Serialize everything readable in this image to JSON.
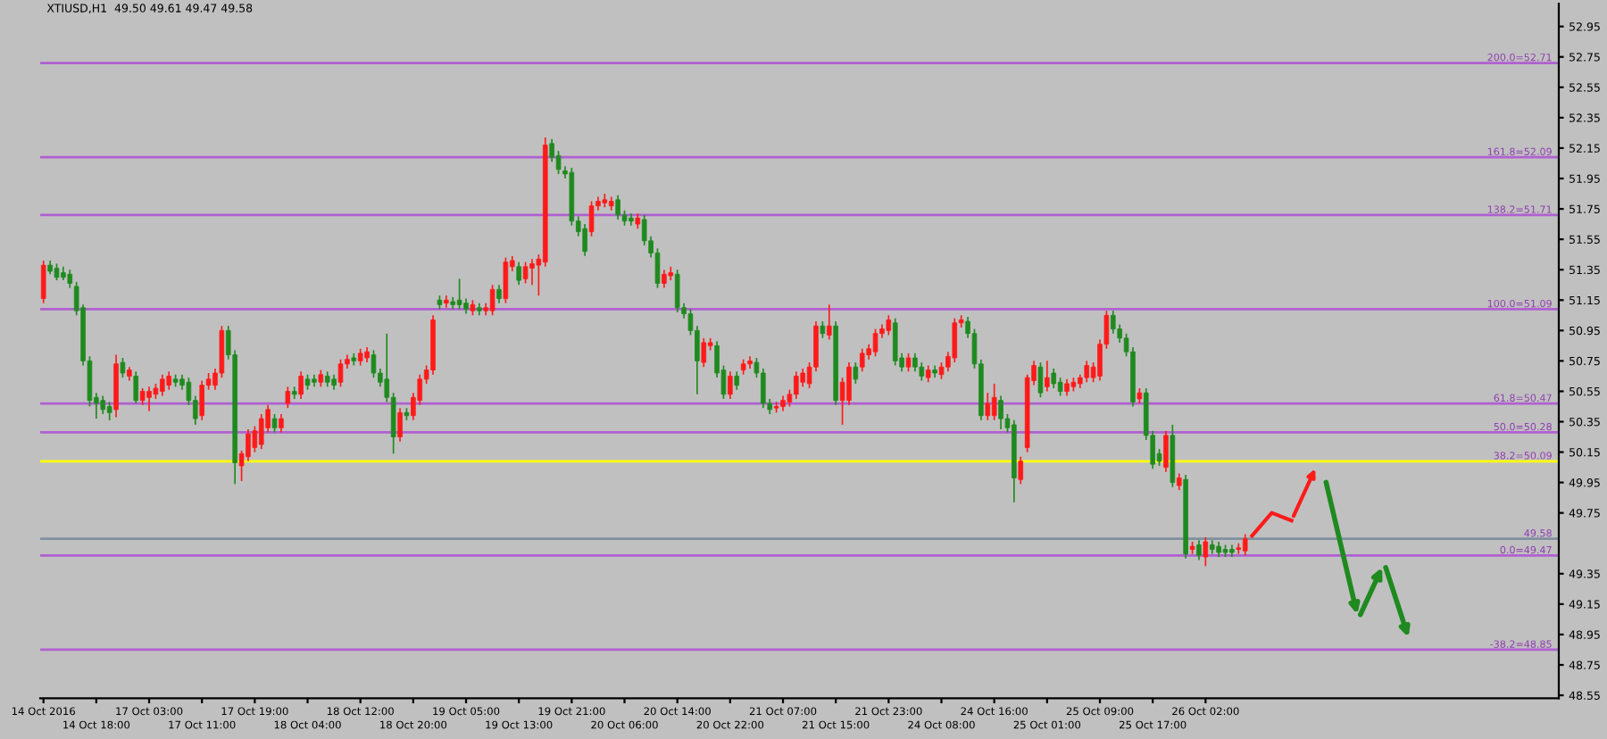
{
  "chart_data": {
    "type": "candlestick",
    "title": "XTIUSD,H1  49.50 49.61 49.47 49.58",
    "categories": [
      "14 Oct 2016",
      null,
      null,
      null,
      null,
      null,
      null,
      null,
      "14 Oct 18:00",
      null,
      null,
      null,
      null,
      null,
      null,
      null,
      "17 Oct 03:00",
      null,
      null,
      null,
      null,
      null,
      null,
      null,
      "17 Oct 11:00",
      null,
      null,
      null,
      null,
      null,
      null,
      null,
      "17 Oct 19:00",
      null,
      null,
      null,
      null,
      null,
      null,
      null,
      "18 Oct 04:00",
      null,
      null,
      null,
      null,
      null,
      null,
      null,
      "18 Oct 12:00",
      null,
      null,
      null,
      null,
      null,
      null,
      null,
      "18 Oct 20:00",
      null,
      null,
      null,
      null,
      null,
      null,
      null,
      "19 Oct 05:00",
      null,
      null,
      null,
      null,
      null,
      null,
      null,
      "19 Oct 13:00",
      null,
      null,
      null,
      null,
      null,
      null,
      null,
      "19 Oct 21:00",
      null,
      null,
      null,
      null,
      null,
      null,
      null,
      "20 Oct 06:00",
      null,
      null,
      null,
      null,
      null,
      null,
      null,
      "20 Oct 14:00",
      null,
      null,
      null,
      null,
      null,
      null,
      null,
      "20 Oct 22:00",
      null,
      null,
      null,
      null,
      null,
      null,
      null,
      "21 Oct 07:00",
      null,
      null,
      null,
      null,
      null,
      null,
      null,
      "21 Oct 15:00",
      null,
      null,
      null,
      null,
      null,
      null,
      null,
      "21 Oct 23:00",
      null,
      null,
      null,
      null,
      null,
      null,
      null,
      "24 Oct 08:00",
      null,
      null,
      null,
      null,
      null,
      null,
      null,
      "24 Oct 16:00",
      null,
      null,
      null,
      null,
      null,
      null,
      null,
      "25 Oct 01:00",
      null,
      null,
      null,
      null,
      null,
      null,
      null,
      "25 Oct 09:00",
      null,
      null,
      null,
      null,
      null,
      null,
      null,
      "25 Oct 17:00",
      null,
      null,
      null,
      null,
      null,
      null,
      null,
      "26 Oct 02:00",
      null,
      null,
      null,
      null,
      null,
      null,
      null,
      null,
      null,
      null,
      null,
      null,
      null,
      null,
      null,
      null,
      null,
      null,
      null,
      null,
      null,
      null,
      null,
      null,
      null,
      null,
      null,
      null,
      null,
      null,
      null,
      null,
      null,
      null,
      null,
      null,
      null,
      null,
      null,
      null,
      null,
      null,
      null,
      null,
      null,
      null,
      null,
      null,
      null,
      null,
      null,
      null,
      null
    ],
    "ohlc": [
      [
        51.16,
        51.41,
        51.13,
        51.38
      ],
      [
        51.38,
        51.41,
        51.32,
        51.34
      ],
      [
        51.36,
        51.39,
        51.28,
        51.3
      ],
      [
        51.33,
        51.37,
        51.28,
        51.3
      ],
      [
        51.32,
        51.35,
        51.23,
        51.26
      ],
      [
        51.24,
        51.27,
        51.05,
        51.08
      ],
      [
        51.1,
        51.12,
        50.72,
        50.75
      ],
      [
        50.75,
        50.78,
        50.45,
        50.49
      ],
      [
        50.51,
        50.54,
        50.37,
        50.47
      ],
      [
        50.49,
        50.52,
        50.4,
        50.43
      ],
      [
        50.45,
        50.48,
        50.36,
        50.41
      ],
      [
        50.43,
        50.79,
        50.38,
        50.73
      ],
      [
        50.74,
        50.77,
        50.64,
        50.67
      ],
      [
        50.65,
        50.71,
        50.62,
        50.69
      ],
      [
        50.65,
        50.68,
        50.47,
        50.49
      ],
      [
        50.49,
        50.57,
        50.46,
        50.55
      ],
      [
        50.51,
        50.58,
        50.42,
        50.55
      ],
      [
        50.53,
        50.6,
        50.5,
        50.57
      ],
      [
        50.55,
        50.66,
        50.52,
        50.63
      ],
      [
        50.59,
        50.68,
        50.56,
        50.65
      ],
      [
        50.63,
        50.66,
        50.58,
        50.61
      ],
      [
        50.63,
        50.66,
        50.56,
        50.59
      ],
      [
        50.61,
        50.64,
        50.46,
        50.49
      ],
      [
        50.49,
        50.52,
        50.33,
        50.37
      ],
      [
        50.39,
        50.62,
        50.36,
        50.59
      ],
      [
        50.59,
        50.67,
        50.56,
        50.63
      ],
      [
        50.59,
        50.7,
        50.56,
        50.67
      ],
      [
        50.67,
        50.98,
        50.64,
        50.95
      ],
      [
        50.95,
        50.98,
        50.76,
        50.79
      ],
      [
        50.79,
        50.82,
        49.94,
        50.08
      ],
      [
        50.06,
        50.16,
        49.96,
        50.14
      ],
      [
        50.12,
        50.3,
        50.09,
        50.27
      ],
      [
        50.18,
        50.32,
        50.15,
        50.29
      ],
      [
        50.2,
        50.4,
        50.17,
        50.37
      ],
      [
        50.31,
        50.46,
        50.28,
        50.43
      ],
      [
        50.37,
        50.4,
        50.28,
        50.31
      ],
      [
        50.31,
        50.4,
        50.28,
        50.37
      ],
      [
        50.47,
        50.58,
        50.44,
        50.55
      ],
      [
        50.55,
        50.58,
        50.5,
        50.53
      ],
      [
        50.53,
        50.68,
        50.5,
        50.65
      ],
      [
        50.63,
        50.66,
        50.56,
        50.59
      ],
      [
        50.63,
        50.66,
        50.58,
        50.61
      ],
      [
        50.61,
        50.69,
        50.58,
        50.66
      ],
      [
        50.65,
        50.68,
        50.58,
        50.61
      ],
      [
        50.63,
        50.66,
        50.56,
        50.59
      ],
      [
        50.61,
        50.76,
        50.58,
        50.73
      ],
      [
        50.73,
        50.79,
        50.7,
        50.76
      ],
      [
        50.77,
        50.8,
        50.72,
        50.75
      ],
      [
        50.75,
        50.83,
        50.72,
        50.8
      ],
      [
        50.77,
        50.84,
        50.74,
        50.81
      ],
      [
        50.79,
        50.82,
        50.64,
        50.67
      ],
      [
        50.67,
        50.7,
        50.58,
        50.61
      ],
      [
        50.63,
        50.93,
        50.48,
        50.51
      ],
      [
        50.51,
        50.54,
        50.14,
        50.25
      ],
      [
        50.25,
        50.44,
        50.22,
        50.41
      ],
      [
        50.41,
        50.44,
        50.36,
        50.39
      ],
      [
        50.39,
        50.54,
        50.36,
        50.51
      ],
      [
        50.49,
        50.66,
        50.46,
        50.63
      ],
      [
        50.63,
        50.72,
        50.6,
        50.69
      ],
      [
        50.69,
        51.05,
        50.66,
        51.02
      ],
      [
        51.15,
        51.18,
        51.09,
        51.12
      ],
      [
        51.13,
        51.18,
        51.1,
        51.15
      ],
      [
        51.14,
        51.17,
        51.09,
        51.12
      ],
      [
        51.15,
        51.29,
        51.09,
        51.12
      ],
      [
        51.13,
        51.16,
        51.06,
        51.09
      ],
      [
        51.08,
        51.15,
        51.05,
        51.12
      ],
      [
        51.1,
        51.13,
        51.05,
        51.08
      ],
      [
        51.08,
        51.13,
        51.05,
        51.1
      ],
      [
        51.08,
        51.25,
        51.05,
        51.22
      ],
      [
        51.22,
        51.25,
        51.13,
        51.16
      ],
      [
        51.16,
        51.43,
        51.13,
        51.4
      ],
      [
        51.37,
        51.44,
        51.34,
        51.41
      ],
      [
        51.37,
        51.4,
        51.25,
        51.28
      ],
      [
        51.29,
        51.4,
        51.26,
        51.37
      ],
      [
        51.36,
        51.42,
        51.25,
        51.39
      ],
      [
        51.38,
        51.45,
        51.18,
        51.42
      ],
      [
        51.4,
        52.22,
        51.37,
        52.17
      ],
      [
        52.18,
        52.21,
        52.06,
        52.09
      ],
      [
        52.1,
        52.13,
        51.98,
        52.01
      ],
      [
        52.0,
        52.03,
        51.95,
        51.98
      ],
      [
        51.99,
        52.02,
        51.64,
        51.67
      ],
      [
        51.67,
        51.7,
        51.57,
        51.6
      ],
      [
        51.62,
        51.65,
        51.44,
        51.47
      ],
      [
        51.6,
        51.8,
        51.57,
        51.77
      ],
      [
        51.77,
        51.83,
        51.74,
        51.8
      ],
      [
        51.79,
        51.85,
        51.76,
        51.81
      ],
      [
        51.77,
        51.83,
        51.74,
        51.8
      ],
      [
        51.81,
        51.84,
        51.68,
        51.71
      ],
      [
        51.71,
        51.74,
        51.64,
        51.67
      ],
      [
        51.69,
        51.72,
        51.64,
        51.67
      ],
      [
        51.65,
        51.72,
        51.62,
        51.69
      ],
      [
        51.68,
        51.71,
        51.51,
        51.54
      ],
      [
        51.54,
        51.57,
        51.43,
        51.46
      ],
      [
        51.46,
        51.49,
        51.23,
        51.26
      ],
      [
        51.26,
        51.35,
        51.23,
        51.32
      ],
      [
        51.31,
        51.37,
        51.28,
        51.33
      ],
      [
        51.32,
        51.35,
        51.07,
        51.1
      ],
      [
        51.1,
        51.13,
        51.03,
        51.06
      ],
      [
        51.06,
        51.09,
        50.92,
        50.95
      ],
      [
        50.95,
        50.98,
        50.53,
        50.75
      ],
      [
        50.74,
        50.9,
        50.71,
        50.87
      ],
      [
        50.85,
        50.9,
        50.82,
        50.87
      ],
      [
        50.85,
        50.88,
        50.64,
        50.67
      ],
      [
        50.69,
        50.72,
        50.5,
        50.53
      ],
      [
        50.53,
        50.68,
        50.5,
        50.65
      ],
      [
        50.65,
        50.68,
        50.56,
        50.59
      ],
      [
        50.69,
        50.76,
        50.66,
        50.73
      ],
      [
        50.73,
        50.78,
        50.7,
        50.75
      ],
      [
        50.74,
        50.77,
        50.64,
        50.67
      ],
      [
        50.67,
        50.7,
        50.44,
        50.47
      ],
      [
        50.47,
        50.5,
        50.4,
        50.43
      ],
      [
        50.44,
        50.48,
        50.41,
        50.45
      ],
      [
        50.45,
        50.52,
        50.42,
        50.49
      ],
      [
        50.48,
        50.56,
        50.45,
        50.53
      ],
      [
        50.53,
        50.68,
        50.5,
        50.65
      ],
      [
        50.61,
        50.7,
        50.58,
        50.67
      ],
      [
        50.6,
        50.74,
        50.57,
        50.71
      ],
      [
        50.71,
        51.01,
        50.68,
        50.98
      ],
      [
        50.98,
        51.01,
        50.9,
        50.93
      ],
      [
        50.92,
        51.12,
        50.89,
        50.98
      ],
      [
        50.98,
        51.01,
        50.46,
        50.49
      ],
      [
        50.49,
        50.64,
        50.33,
        50.61
      ],
      [
        50.49,
        50.74,
        50.46,
        50.71
      ],
      [
        50.71,
        50.74,
        50.6,
        50.63
      ],
      [
        50.71,
        50.83,
        50.68,
        50.8
      ],
      [
        50.79,
        50.86,
        50.76,
        50.83
      ],
      [
        50.81,
        50.96,
        50.78,
        50.93
      ],
      [
        50.93,
        50.99,
        50.9,
        50.96
      ],
      [
        50.95,
        51.05,
        50.92,
        51.02
      ],
      [
        51.0,
        51.03,
        50.72,
        50.75
      ],
      [
        50.77,
        50.8,
        50.68,
        50.71
      ],
      [
        50.71,
        50.8,
        50.68,
        50.77
      ],
      [
        50.77,
        50.8,
        50.68,
        50.71
      ],
      [
        50.71,
        50.74,
        50.62,
        50.65
      ],
      [
        50.64,
        50.72,
        50.61,
        50.69
      ],
      [
        50.69,
        50.72,
        50.64,
        50.67
      ],
      [
        50.66,
        50.74,
        50.63,
        50.71
      ],
      [
        50.71,
        50.81,
        50.68,
        50.78
      ],
      [
        50.77,
        51.03,
        50.74,
        51.0
      ],
      [
        51.0,
        51.05,
        50.97,
        51.02
      ],
      [
        51.01,
        51.04,
        50.9,
        50.93
      ],
      [
        50.93,
        50.96,
        50.7,
        50.73
      ],
      [
        50.73,
        50.76,
        50.36,
        50.39
      ],
      [
        50.39,
        50.54,
        50.36,
        50.47
      ],
      [
        50.39,
        50.6,
        50.36,
        50.51
      ],
      [
        50.49,
        50.52,
        50.3,
        50.37
      ],
      [
        50.37,
        50.4,
        50.28,
        50.31
      ],
      [
        50.33,
        50.36,
        49.82,
        49.98
      ],
      [
        49.97,
        50.12,
        49.94,
        50.09
      ],
      [
        50.18,
        50.66,
        50.15,
        50.64
      ],
      [
        50.62,
        50.75,
        50.59,
        50.72
      ],
      [
        50.71,
        50.74,
        50.51,
        50.54
      ],
      [
        50.58,
        50.75,
        50.55,
        50.64
      ],
      [
        50.67,
        50.7,
        50.57,
        50.6
      ],
      [
        50.61,
        50.64,
        50.52,
        50.55
      ],
      [
        50.55,
        50.63,
        50.52,
        50.6
      ],
      [
        50.58,
        50.64,
        50.55,
        50.61
      ],
      [
        50.6,
        50.66,
        50.57,
        50.64
      ],
      [
        50.64,
        50.75,
        50.61,
        50.72
      ],
      [
        50.64,
        50.74,
        50.61,
        50.71
      ],
      [
        50.65,
        50.89,
        50.62,
        50.86
      ],
      [
        50.86,
        51.08,
        50.83,
        51.05
      ],
      [
        51.05,
        51.08,
        50.93,
        50.96
      ],
      [
        50.96,
        50.99,
        50.87,
        50.9
      ],
      [
        50.9,
        50.93,
        50.78,
        50.81
      ],
      [
        50.81,
        50.84,
        50.45,
        50.48
      ],
      [
        50.5,
        50.57,
        50.47,
        50.54
      ],
      [
        50.54,
        50.57,
        50.23,
        50.26
      ],
      [
        50.26,
        50.29,
        50.04,
        50.07
      ],
      [
        50.14,
        50.17,
        50.06,
        50.09
      ],
      [
        50.05,
        50.29,
        50.02,
        50.26
      ],
      [
        50.26,
        50.33,
        49.92,
        49.95
      ],
      [
        49.93,
        50.01,
        49.9,
        49.98
      ],
      [
        49.97,
        50.0,
        49.45,
        49.48
      ],
      [
        49.51,
        49.56,
        49.48,
        49.53
      ],
      [
        49.54,
        49.57,
        49.44,
        49.47
      ],
      [
        49.46,
        49.59,
        49.4,
        49.56
      ],
      [
        49.54,
        49.57,
        49.48,
        49.51
      ],
      [
        49.53,
        49.56,
        49.46,
        49.49
      ],
      [
        49.51,
        49.54,
        49.46,
        49.49
      ],
      [
        49.51,
        49.54,
        49.46,
        49.49
      ],
      [
        49.51,
        49.55,
        49.48,
        49.52
      ],
      [
        49.5,
        49.61,
        49.47,
        49.58
      ],
      null,
      null,
      null,
      null,
      null,
      null,
      null,
      null,
      null,
      null,
      null,
      null,
      null,
      null,
      null,
      null,
      null,
      null,
      null,
      null,
      null,
      null,
      null,
      null,
      null,
      null,
      null,
      null,
      null,
      null,
      null,
      null,
      null,
      null,
      null,
      null,
      null,
      null,
      null,
      null,
      null,
      null,
      null,
      null,
      null,
      null,
      null
    ],
    "ylim": [
      48.53,
      53.1
    ],
    "yticks": [
      52.95,
      52.75,
      52.55,
      52.35,
      52.15,
      51.95,
      51.75,
      51.55,
      51.35,
      51.15,
      50.95,
      50.75,
      50.55,
      50.35,
      50.15,
      49.95,
      49.75,
      49.35,
      49.15,
      48.95,
      48.75,
      48.55
    ],
    "ref_lines": [
      {
        "axis": "y",
        "value": 52.71,
        "label": "200.0=52.71",
        "color": "#b060d0"
      },
      {
        "axis": "y",
        "value": 52.09,
        "label": "161.8=52.09",
        "color": "#b060d0"
      },
      {
        "axis": "y",
        "value": 51.71,
        "label": "138.2=51.71",
        "color": "#b060d0"
      },
      {
        "axis": "y",
        "value": 51.09,
        "label": "100.0=51.09",
        "color": "#b060d0"
      },
      {
        "axis": "y",
        "value": 50.47,
        "label": "61.8=50.47",
        "color": "#b060d0"
      },
      {
        "axis": "y",
        "value": 50.28,
        "label": "50.0=50.28",
        "color": "#b060d0"
      },
      {
        "axis": "y",
        "value": 50.09,
        "label": "38.2=50.09",
        "color": "#ffff00"
      },
      {
        "axis": "y",
        "value": 49.58,
        "label": "49.58",
        "color": "#8090a0"
      },
      {
        "axis": "y",
        "value": 49.47,
        "label": "0.0=49.47",
        "color": "#b060d0"
      },
      {
        "axis": "y",
        "value": 48.85,
        "label": "-38.2=48.85",
        "color": "#b060d0"
      }
    ],
    "grid": false
  }
}
